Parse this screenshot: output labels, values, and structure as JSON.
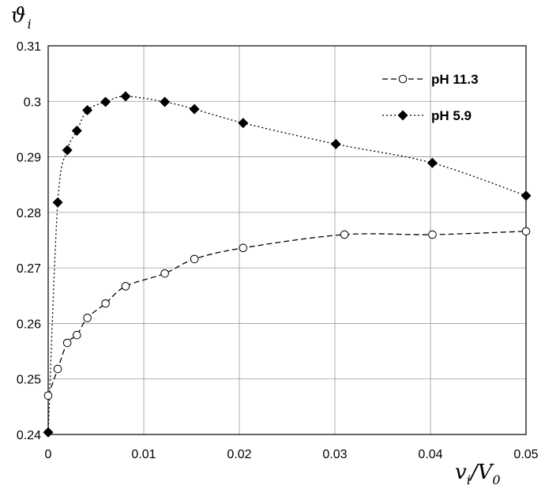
{
  "chart_data": {
    "type": "scatter",
    "title": "",
    "xlabel": {
      "main": "v",
      "sub": "i",
      "slash": "/",
      "main2": "V",
      "sub2": "0"
    },
    "ylabel": {
      "main": "ϑ",
      "sub": "i"
    },
    "xlim": [
      0,
      0.05
    ],
    "ylim": [
      0.24,
      0.31
    ],
    "x_ticks": [
      "0",
      "0.01",
      "0.02",
      "0.03",
      "0.04",
      "0.05"
    ],
    "y_ticks": [
      "0.24",
      "0.25",
      "0.26",
      "0.27",
      "0.28",
      "0.29",
      "0.3",
      "0.31"
    ],
    "grid": true,
    "legend_position": "top-right",
    "series": [
      {
        "name": "pH 11.3",
        "marker": "open-circle",
        "line": "dashed",
        "color": "#000000",
        "x": [
          0,
          0.001,
          0.002,
          0.003,
          0.0041,
          0.006,
          0.0081,
          0.0122,
          0.0153,
          0.0204,
          0.031,
          0.0402,
          0.05
        ],
        "y": [
          0.247,
          0.2518,
          0.2565,
          0.2579,
          0.261,
          0.2636,
          0.2667,
          0.269,
          0.2716,
          0.2736,
          0.276,
          0.276,
          0.2766
        ]
      },
      {
        "name": "pH 5.9",
        "marker": "filled-diamond",
        "line": "dotted",
        "color": "#000000",
        "x": [
          0,
          0.001,
          0.002,
          0.003,
          0.0041,
          0.006,
          0.0081,
          0.0122,
          0.0153,
          0.0204,
          0.0301,
          0.0402,
          0.05
        ],
        "y": [
          0.2404,
          0.2818,
          0.2912,
          0.2947,
          0.2984,
          0.2999,
          0.3009,
          0.2999,
          0.2986,
          0.2961,
          0.2923,
          0.2889,
          0.283
        ]
      }
    ]
  }
}
